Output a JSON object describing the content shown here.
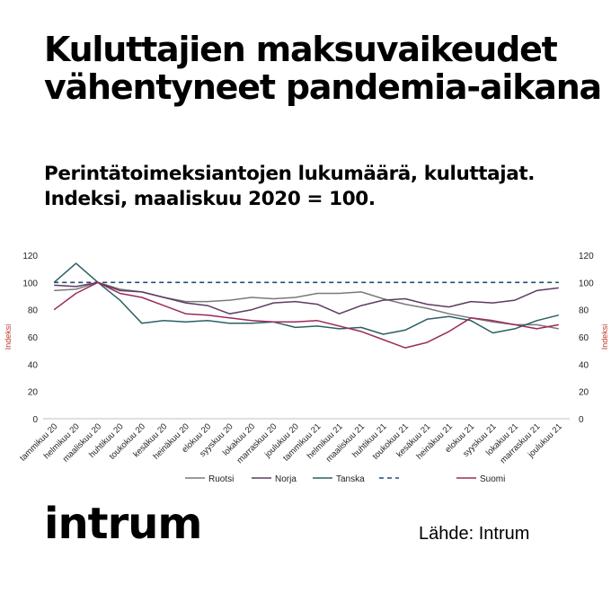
{
  "title": "Kuluttajien maksuvaikeudet vähentyneet pandemia-aikana",
  "subtitle": "Perintätoimeksiantojen lukumäärä, kuluttajat. Indeksi, maaliskuu 2020 = 100.",
  "logo": "intrum",
  "source": "Lähde: Intrum",
  "chart_data": {
    "type": "line",
    "xlabel": "",
    "ylabel": "Indeksi",
    "ylabel_right": "Indeksi",
    "ylim": [
      0,
      120
    ],
    "yticks": [
      0,
      20,
      40,
      60,
      80,
      100,
      120
    ],
    "grid": false,
    "legend": "bottom",
    "categories": [
      "tammikuu 20",
      "helmikuu 20",
      "maaliskuu 20",
      "huhtikuu 20",
      "toukokuu 20",
      "kesäkuu 20",
      "heinäkuu 20",
      "elokuu 20",
      "syyskuu 20",
      "lokakuu 20",
      "marraskuu 20",
      "joulukuu 20",
      "tammikuu 21",
      "helmikuu 21",
      "maaliskuu 21",
      "huhtikuu 21",
      "toukokuu 21",
      "kesäkuu 21",
      "heinäkuu 21",
      "elokuu 21",
      "syyskuu 21",
      "lokakuu 21",
      "marraskuu 21",
      "joulukuu 21"
    ],
    "series": [
      {
        "name": "Ruotsi",
        "color": "#7a7a7a",
        "dash": false,
        "values": [
          94,
          95,
          100,
          95,
          93,
          89,
          86,
          86,
          87,
          89,
          88,
          89,
          92,
          92,
          93,
          88,
          84,
          81,
          77,
          74,
          71,
          69,
          69,
          66
        ]
      },
      {
        "name": "Norja",
        "color": "#5e3b63",
        "dash": false,
        "values": [
          98,
          97,
          100,
          94,
          93,
          89,
          85,
          83,
          77,
          80,
          85,
          86,
          84,
          77,
          83,
          87,
          88,
          84,
          82,
          86,
          85,
          87,
          94,
          96
        ]
      },
      {
        "name": "Tanska",
        "color": "#2a6066",
        "dash": false,
        "values": [
          100,
          114,
          100,
          87,
          70,
          72,
          71,
          72,
          70,
          70,
          71,
          67,
          68,
          66,
          67,
          62,
          65,
          73,
          75,
          72,
          63,
          66,
          72,
          76
        ]
      },
      {
        "name": "",
        "color": "#234b78",
        "dash": true,
        "values": [
          100,
          100,
          100,
          100,
          100,
          100,
          100,
          100,
          100,
          100,
          100,
          100,
          100,
          100,
          100,
          100,
          100,
          100,
          100,
          100,
          100,
          100,
          100,
          100
        ]
      },
      {
        "name": "Suomi",
        "color": "#9b2a5c",
        "dash": false,
        "values": [
          80,
          92,
          100,
          92,
          89,
          83,
          77,
          76,
          74,
          72,
          71,
          71,
          72,
          68,
          64,
          58,
          52,
          56,
          64,
          74,
          72,
          69,
          66,
          69
        ]
      }
    ]
  }
}
